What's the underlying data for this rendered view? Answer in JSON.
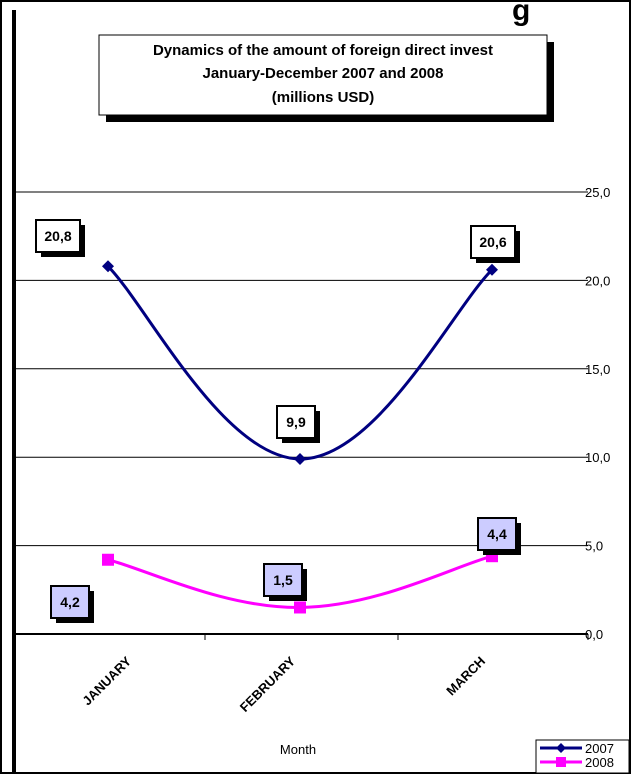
{
  "page": {
    "top_partial_text": "g"
  },
  "chart_data": {
    "type": "line",
    "title_lines": [
      "Dynamics of the amount of foreign direct invest",
      "January-December 2007 and  2008",
      "(millions USD)"
    ],
    "xlabel": "Month",
    "ylabel": "",
    "categories": [
      "JANUARY",
      "FEBRUARY",
      "MARCH"
    ],
    "ylim": [
      0,
      25
    ],
    "yticks": [
      "0,0",
      "5,0",
      "10,0",
      "15,0",
      "20,0",
      "25,0"
    ],
    "ytick_values": [
      0,
      5,
      10,
      15,
      20,
      25
    ],
    "y_axis_side": "right",
    "grid": true,
    "legend_position": "bottom-right",
    "series": [
      {
        "name": "2007",
        "values": [
          20.8,
          9.9,
          20.6
        ],
        "labels": [
          "20,8",
          "9,9",
          "20,6"
        ],
        "color": "#000080",
        "marker": "diamond",
        "label_bg": "#ffffff"
      },
      {
        "name": "2008",
        "values": [
          4.2,
          1.5,
          4.4
        ],
        "labels": [
          "4,2",
          "1,5",
          "4,4"
        ],
        "color": "#ff00ff",
        "marker": "square",
        "label_bg": "#ccccff"
      }
    ]
  }
}
